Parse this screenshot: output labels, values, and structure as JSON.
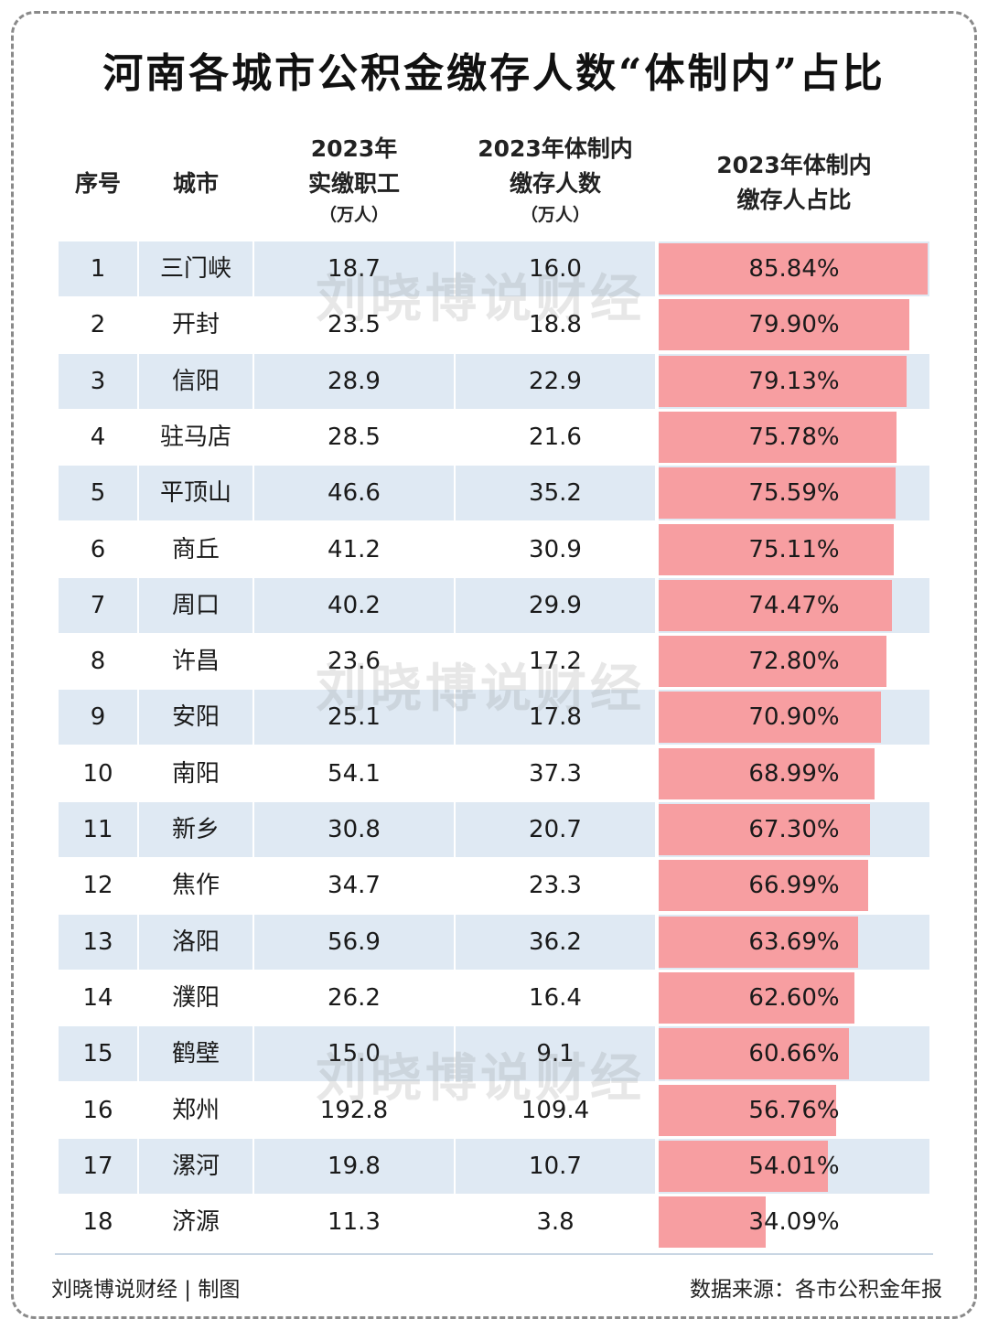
{
  "title": "河南各城市公积金缴存人数“体制内”占比",
  "headers": {
    "index": "序号",
    "city": "城市",
    "employees_line1": "2023年",
    "employees_line2": "实缴职工",
    "employees_unit": "（万人）",
    "public_line1": "2023年体制内",
    "public_line2": "缴存人数",
    "public_unit": "（万人）",
    "ratio_line1": "2023年体制内",
    "ratio_line2": "缴存人占比"
  },
  "watermark": "刘晓博说财经",
  "footer": {
    "credit": "刘晓博说财经 | 制图",
    "source": "数据来源：各市公积金年报"
  },
  "colors": {
    "bar": "#f79ea1",
    "stripe": "#dfe9f3",
    "frame": "#8a8a8a"
  },
  "chart_data": {
    "type": "table",
    "title": "河南各城市公积金缴存人数“体制内”占比",
    "columns": [
      "序号",
      "城市",
      "2023年实缴职工（万人）",
      "2023年体制内缴存人数（万人）",
      "2023年体制内缴存人占比"
    ],
    "bar_column": "2023年体制内缴存人占比",
    "bar_max": 85.84,
    "rows": [
      {
        "rank": "1",
        "city": "三门峡",
        "employees": "18.7",
        "public": "16.0",
        "ratio": 85.84,
        "ratio_label": "85.84%"
      },
      {
        "rank": "2",
        "city": "开封",
        "employees": "23.5",
        "public": "18.8",
        "ratio": 79.9,
        "ratio_label": "79.90%"
      },
      {
        "rank": "3",
        "city": "信阳",
        "employees": "28.9",
        "public": "22.9",
        "ratio": 79.13,
        "ratio_label": "79.13%"
      },
      {
        "rank": "4",
        "city": "驻马店",
        "employees": "28.5",
        "public": "21.6",
        "ratio": 75.78,
        "ratio_label": "75.78%"
      },
      {
        "rank": "5",
        "city": "平顶山",
        "employees": "46.6",
        "public": "35.2",
        "ratio": 75.59,
        "ratio_label": "75.59%"
      },
      {
        "rank": "6",
        "city": "商丘",
        "employees": "41.2",
        "public": "30.9",
        "ratio": 75.11,
        "ratio_label": "75.11%"
      },
      {
        "rank": "7",
        "city": "周口",
        "employees": "40.2",
        "public": "29.9",
        "ratio": 74.47,
        "ratio_label": "74.47%"
      },
      {
        "rank": "8",
        "city": "许昌",
        "employees": "23.6",
        "public": "17.2",
        "ratio": 72.8,
        "ratio_label": "72.80%"
      },
      {
        "rank": "9",
        "city": "安阳",
        "employees": "25.1",
        "public": "17.8",
        "ratio": 70.9,
        "ratio_label": "70.90%"
      },
      {
        "rank": "10",
        "city": "南阳",
        "employees": "54.1",
        "public": "37.3",
        "ratio": 68.99,
        "ratio_label": "68.99%"
      },
      {
        "rank": "11",
        "city": "新乡",
        "employees": "30.8",
        "public": "20.7",
        "ratio": 67.3,
        "ratio_label": "67.30%"
      },
      {
        "rank": "12",
        "city": "焦作",
        "employees": "34.7",
        "public": "23.3",
        "ratio": 66.99,
        "ratio_label": "66.99%"
      },
      {
        "rank": "13",
        "city": "洛阳",
        "employees": "56.9",
        "public": "36.2",
        "ratio": 63.69,
        "ratio_label": "63.69%"
      },
      {
        "rank": "14",
        "city": "濮阳",
        "employees": "26.2",
        "public": "16.4",
        "ratio": 62.6,
        "ratio_label": "62.60%"
      },
      {
        "rank": "15",
        "city": "鹤壁",
        "employees": "15.0",
        "public": "9.1",
        "ratio": 60.66,
        "ratio_label": "60.66%"
      },
      {
        "rank": "16",
        "city": "郑州",
        "employees": "192.8",
        "public": "109.4",
        "ratio": 56.76,
        "ratio_label": "56.76%"
      },
      {
        "rank": "17",
        "city": "漯河",
        "employees": "19.8",
        "public": "10.7",
        "ratio": 54.01,
        "ratio_label": "54.01%"
      },
      {
        "rank": "18",
        "city": "济源",
        "employees": "11.3",
        "public": "3.8",
        "ratio": 34.09,
        "ratio_label": "34.09%"
      }
    ]
  }
}
